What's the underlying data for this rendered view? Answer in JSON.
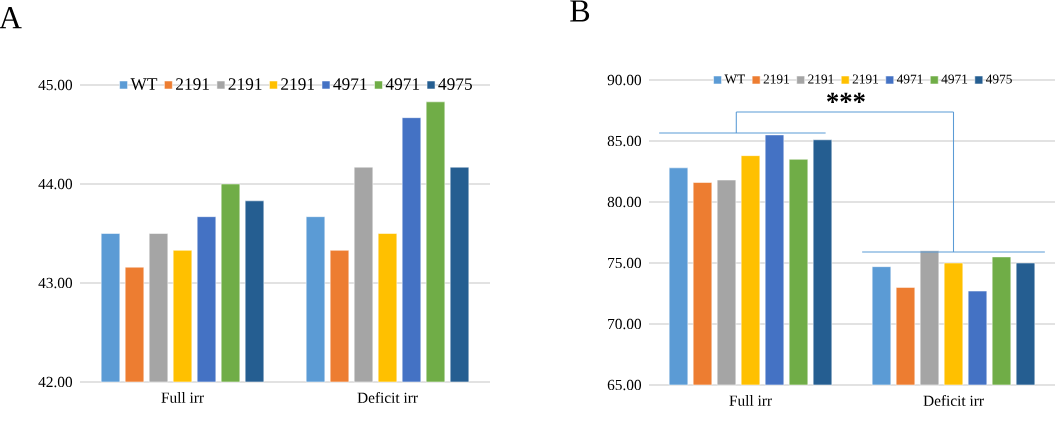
{
  "chart_data": [
    {
      "type": "bar",
      "title": "A",
      "categories": [
        "Full irr",
        "Deficit irr"
      ],
      "series": [
        {
          "name": "WT",
          "color": "#5b9bd5",
          "values": [
            43.5,
            43.67
          ]
        },
        {
          "name": "2191",
          "color": "#ed7d31",
          "values": [
            43.16,
            43.33
          ]
        },
        {
          "name": "2191",
          "color": "#a5a5a5",
          "values": [
            43.5,
            44.17
          ]
        },
        {
          "name": "2191",
          "color": "#ffc000",
          "values": [
            43.33,
            43.5
          ]
        },
        {
          "name": "4971",
          "color": "#4472c4",
          "values": [
            43.67,
            44.67
          ]
        },
        {
          "name": "4971",
          "color": "#70ad47",
          "values": [
            44.0,
            44.83
          ]
        },
        {
          "name": "4975",
          "color": "#255e91",
          "values": [
            43.83,
            44.17
          ]
        }
      ],
      "ylim": [
        42,
        45
      ],
      "yticks": [
        {
          "value": 42,
          "label": "42.00"
        },
        {
          "value": 43,
          "label": "43.00"
        },
        {
          "value": 44,
          "label": "44.00"
        },
        {
          "value": 45,
          "label": "45.00"
        }
      ],
      "grid": "y",
      "legend": "top"
    },
    {
      "type": "bar",
      "title": "B",
      "categories": [
        "Full irr",
        "Deficit irr"
      ],
      "series": [
        {
          "name": "WT",
          "color": "#5b9bd5",
          "values": [
            82.8,
            74.7
          ]
        },
        {
          "name": "2191",
          "color": "#ed7d31",
          "values": [
            81.6,
            73.0
          ]
        },
        {
          "name": "2191",
          "color": "#a5a5a5",
          "values": [
            81.8,
            76.0
          ]
        },
        {
          "name": "2191",
          "color": "#ffc000",
          "values": [
            83.8,
            75.0
          ]
        },
        {
          "name": "4971",
          "color": "#4472c4",
          "values": [
            85.5,
            72.7
          ]
        },
        {
          "name": "4971",
          "color": "#70ad47",
          "values": [
            83.5,
            75.5
          ]
        },
        {
          "name": "4975",
          "color": "#255e91",
          "values": [
            85.1,
            75.0
          ]
        }
      ],
      "ylim": [
        65,
        90
      ],
      "yticks": [
        {
          "value": 65,
          "label": "65.00"
        },
        {
          "value": 70,
          "label": "70.00"
        },
        {
          "value": 75,
          "label": "75.00"
        },
        {
          "value": 80,
          "label": "80.00"
        },
        {
          "value": 85,
          "label": "85.00"
        },
        {
          "value": 90,
          "label": "90.00"
        }
      ],
      "grid": "y",
      "legend": "top",
      "annotations": [
        "***"
      ]
    }
  ]
}
